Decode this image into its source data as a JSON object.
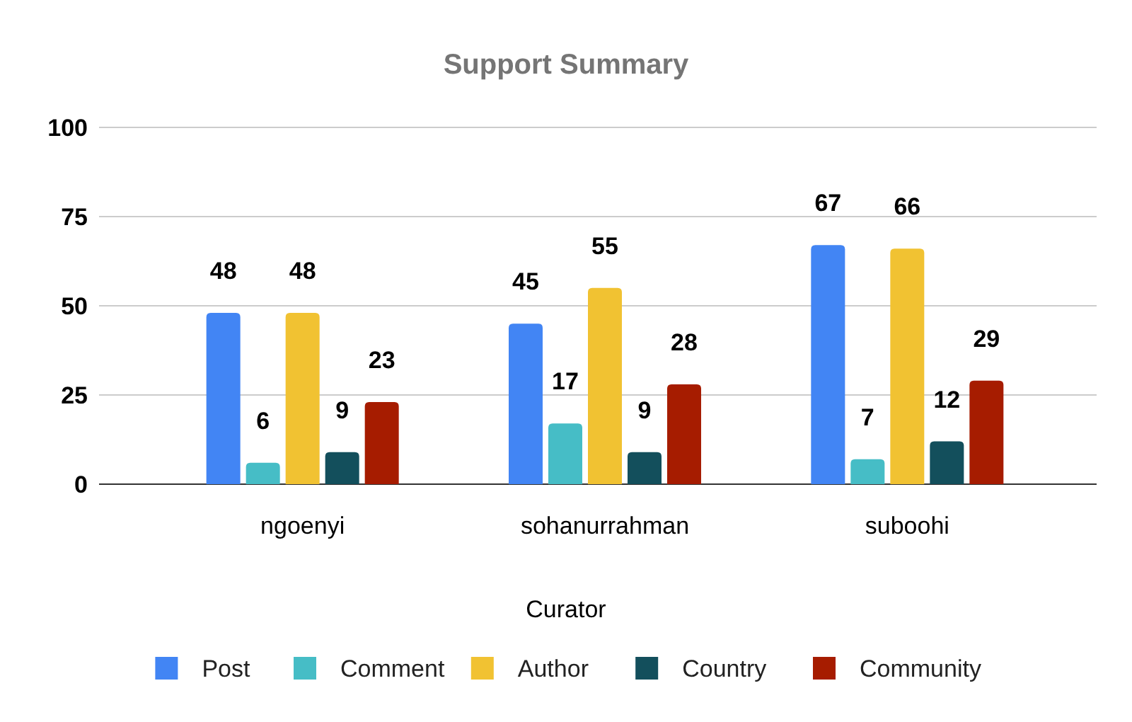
{
  "chart_data": {
    "type": "bar",
    "title": "Support Summary",
    "xlabel": "Curator",
    "categories": [
      "ngoenyi",
      "sohanurrahman",
      "suboohi"
    ],
    "series": [
      {
        "name": "Post",
        "color": "#4285f4",
        "values": [
          48,
          45,
          67
        ]
      },
      {
        "name": "Comment",
        "color": "#46bdc6",
        "values": [
          6,
          17,
          7
        ]
      },
      {
        "name": "Author",
        "color": "#f1c232",
        "values": [
          48,
          55,
          66
        ]
      },
      {
        "name": "Country",
        "color": "#134f5c",
        "values": [
          9,
          9,
          12
        ]
      },
      {
        "name": "Community",
        "color": "#a61c00",
        "values": [
          23,
          28,
          29
        ]
      }
    ],
    "ylim": [
      0,
      100
    ],
    "yticks": [
      0,
      25,
      50,
      75,
      100
    ],
    "grid": "y",
    "legend": "bottom",
    "data_labels": true
  }
}
